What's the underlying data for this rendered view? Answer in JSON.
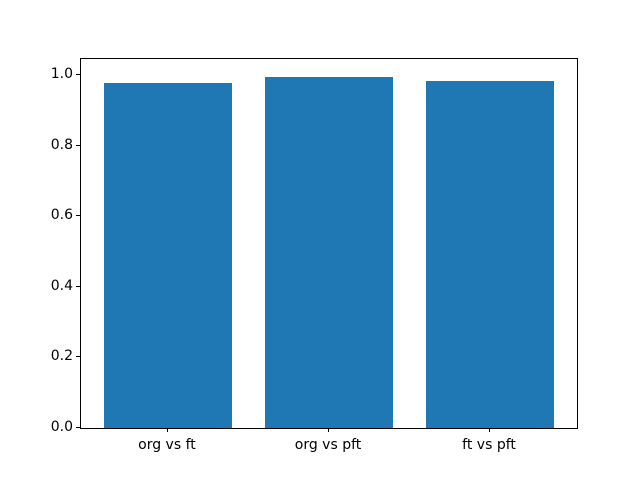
{
  "figure": {
    "background": "#ffffff",
    "spine_color": "#000000",
    "text_color": "#000000"
  },
  "chart_data": {
    "type": "bar",
    "title": "",
    "xlabel": "",
    "ylabel": "",
    "categories": [
      "org vs ft",
      "org vs pft",
      "ft vs pft"
    ],
    "values": [
      0.977,
      0.995,
      0.984
    ],
    "bar_color": "#1f77b4",
    "bar_width": 0.8,
    "xlim": [
      -0.54,
      2.54
    ],
    "ylim": [
      0,
      1.045
    ],
    "y_ticks": [
      0.0,
      0.2,
      0.4,
      0.6,
      0.8,
      1.0
    ],
    "y_tick_labels": [
      "0.0",
      "0.2",
      "0.4",
      "0.6",
      "0.8",
      "1.0"
    ],
    "grid": false,
    "legend": null
  }
}
